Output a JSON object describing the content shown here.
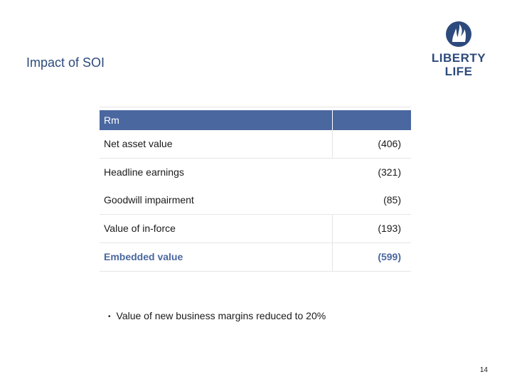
{
  "slide": {
    "title": "Impact of SOI",
    "page_number": "14"
  },
  "logo": {
    "line1": "LIBERTY",
    "line2": "LIFE"
  },
  "table": {
    "header_label": "Rm",
    "rows": [
      {
        "label": "Net asset value",
        "value": "(406)"
      },
      {
        "label": "Headline earnings",
        "value": "(321)"
      },
      {
        "label": "Goodwill impairment",
        "value": "(85)"
      },
      {
        "label": "Value of in-force",
        "value": "(193)"
      },
      {
        "label": "Embedded value",
        "value": "(599)"
      }
    ]
  },
  "notes": {
    "bullet": "Value of new business margins reduced to 20%"
  },
  "colors": {
    "accent": "#4a67a0",
    "title": "#2d4a7c"
  }
}
